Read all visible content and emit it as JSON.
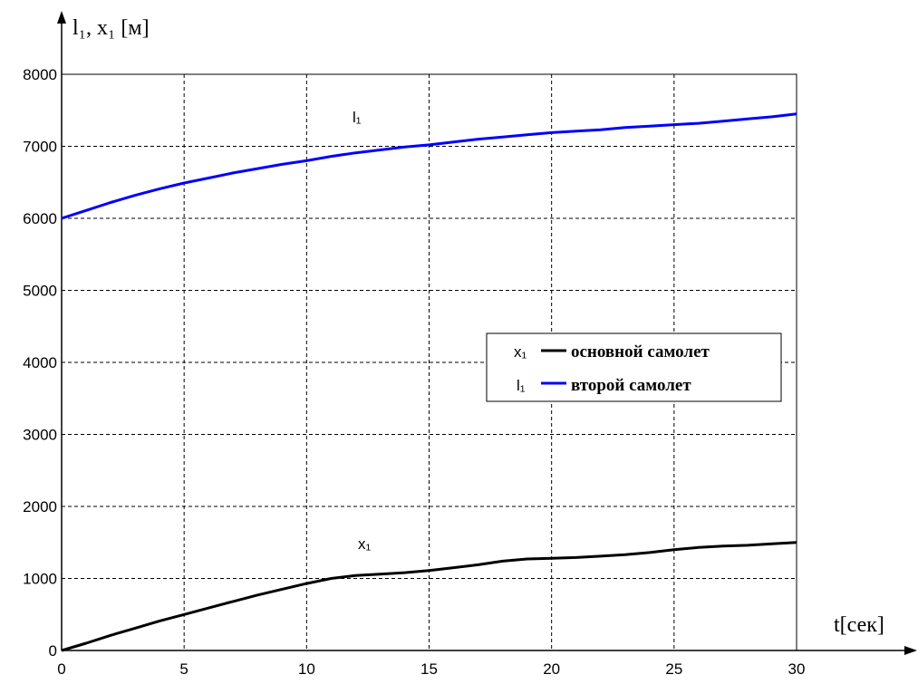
{
  "chart_data": {
    "type": "line",
    "title": "",
    "ylabel": "l₁, x₁ [м]",
    "xlabel": "t[сек]",
    "xlim": [
      0,
      30
    ],
    "ylim": [
      0,
      8000
    ],
    "xticks": [
      "0",
      "5",
      "10",
      "15",
      "20",
      "25",
      "30"
    ],
    "yticks": [
      "0",
      "1000",
      "2000",
      "3000",
      "4000",
      "5000",
      "6000",
      "7000",
      "8000"
    ],
    "grid": true,
    "legend_position": "center-right",
    "series": [
      {
        "name": "основной самолет",
        "legend_symbol": "x₁",
        "curve_label": "x₁",
        "color": "#000000",
        "x": [
          0,
          1,
          2,
          3,
          4,
          5,
          6,
          7,
          8,
          9,
          10,
          11,
          12,
          13,
          14,
          15,
          16,
          17,
          18,
          19,
          20,
          21,
          22,
          23,
          24,
          25,
          26,
          27,
          28,
          29,
          30
        ],
        "values": [
          0,
          100,
          210,
          310,
          410,
          500,
          590,
          680,
          770,
          850,
          930,
          1000,
          1040,
          1060,
          1080,
          1110,
          1150,
          1190,
          1240,
          1270,
          1280,
          1290,
          1310,
          1330,
          1360,
          1400,
          1430,
          1450,
          1460,
          1480,
          1500
        ]
      },
      {
        "name": "второй самолет",
        "legend_symbol": "l₁",
        "curve_label": "l₁",
        "color": "#0000ff",
        "x": [
          0,
          1,
          2,
          3,
          4,
          5,
          6,
          7,
          8,
          9,
          10,
          11,
          12,
          13,
          14,
          15,
          16,
          17,
          18,
          19,
          20,
          21,
          22,
          23,
          24,
          25,
          26,
          27,
          28,
          29,
          30
        ],
        "values": [
          6000,
          6110,
          6220,
          6320,
          6410,
          6490,
          6560,
          6630,
          6690,
          6750,
          6800,
          6860,
          6910,
          6950,
          6990,
          7020,
          7060,
          7100,
          7130,
          7160,
          7190,
          7210,
          7230,
          7260,
          7280,
          7300,
          7320,
          7350,
          7380,
          7410,
          7450
        ]
      }
    ]
  }
}
